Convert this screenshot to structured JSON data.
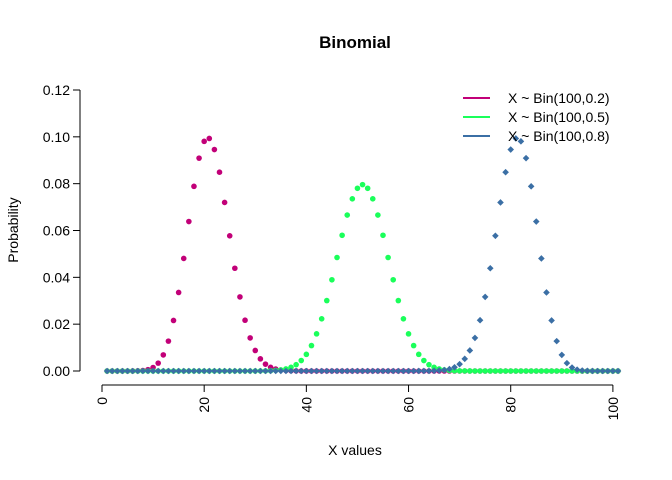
{
  "chart_data": {
    "type": "scatter",
    "title": "Binomial",
    "xlabel": "X values",
    "ylabel": "Probability",
    "xlim": [
      0,
      101
    ],
    "ylim": [
      0,
      0.12
    ],
    "x_ticks": [
      0,
      20,
      40,
      60,
      80,
      100
    ],
    "y_ticks": [
      "0.00",
      "0.02",
      "0.04",
      "0.06",
      "0.08",
      "0.10",
      "0.12"
    ],
    "grid": false,
    "legend_position": "top-right",
    "x_values": "1..101 (k + 1 for k = 0..100)",
    "series": [
      {
        "name": "X ~ Bin(100,0.2)",
        "n": 100,
        "p": 0.2,
        "color": "#C20078",
        "marker": "circle"
      },
      {
        "name": "X ~ Bin(100,0.5)",
        "n": 100,
        "p": 0.5,
        "color": "#1AFF5A",
        "marker": "circle"
      },
      {
        "name": "X ~ Bin(100,0.8)",
        "n": 100,
        "p": 0.8,
        "color": "#3B6FA5",
        "marker": "diamond"
      }
    ]
  }
}
